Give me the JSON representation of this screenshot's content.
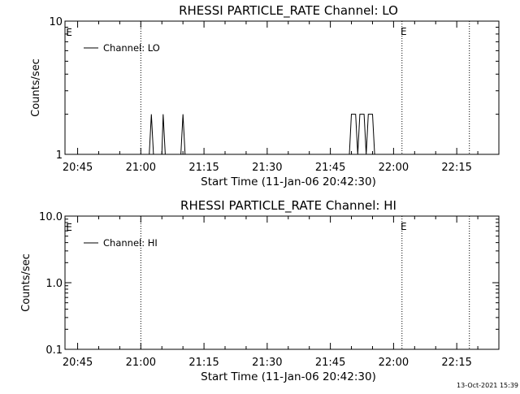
{
  "timestamp": "13-Oct-2021 15:39",
  "chart_data": [
    {
      "type": "line",
      "title": "RHESSI PARTICLE_RATE Channel: LO",
      "xlabel": "Start Time (11-Jan-06 20:42:30)",
      "ylabel": "Counts/sec",
      "y_scale": "log",
      "xlim": [
        "20:42",
        "22:25"
      ],
      "ylim": [
        1,
        10
      ],
      "x_ticks": [
        "20:45",
        "21:00",
        "21:15",
        "21:30",
        "21:45",
        "22:00",
        "22:15"
      ],
      "y_ticks": [
        "1",
        "10"
      ],
      "grid": false,
      "legend_placement": "top-left",
      "legend": "Channel: LO",
      "event_markers": [
        {
          "time": "21:00",
          "label": ""
        },
        {
          "time": "22:02",
          "label": "E"
        },
        {
          "time": "22:18",
          "label": ""
        }
      ],
      "left_edge_label": "E",
      "series": [
        {
          "name": "Channel: LO",
          "points": [
            [
              "21:02",
              1
            ],
            [
              "21:02.5",
              2
            ],
            [
              "21:03",
              1
            ],
            [
              "21:05",
              1
            ],
            [
              "21:05.3",
              2
            ],
            [
              "21:05.8",
              1
            ],
            [
              "21:09.5",
              1
            ],
            [
              "21:10",
              2
            ],
            [
              "21:10.5",
              1
            ],
            [
              "21:49.5",
              1
            ],
            [
              "21:50",
              2
            ],
            [
              "21:51",
              2
            ],
            [
              "21:51.5",
              1
            ],
            [
              "21:52",
              2
            ],
            [
              "21:53",
              2
            ],
            [
              "21:53.5",
              1
            ],
            [
              "21:54",
              2
            ],
            [
              "21:55",
              2
            ],
            [
              "21:55.5",
              1
            ],
            [
              "21:56",
              1
            ]
          ]
        }
      ]
    },
    {
      "type": "line",
      "title": "RHESSI PARTICLE_RATE Channel: HI",
      "xlabel": "Start Time (11-Jan-06 20:42:30)",
      "ylabel": "Counts/sec",
      "y_scale": "log",
      "xlim": [
        "20:42",
        "22:25"
      ],
      "ylim": [
        0.1,
        10
      ],
      "x_ticks": [
        "20:45",
        "21:00",
        "21:15",
        "21:30",
        "21:45",
        "22:00",
        "22:15"
      ],
      "y_ticks": [
        "0.1",
        "1.0",
        "10.0"
      ],
      "grid": false,
      "legend_placement": "top-left",
      "legend": "Channel: HI",
      "event_markers": [
        {
          "time": "21:00",
          "label": ""
        },
        {
          "time": "22:02",
          "label": "E"
        },
        {
          "time": "22:18",
          "label": ""
        }
      ],
      "left_edge_label": "E",
      "series": [
        {
          "name": "Channel: HI",
          "points": []
        }
      ]
    }
  ]
}
